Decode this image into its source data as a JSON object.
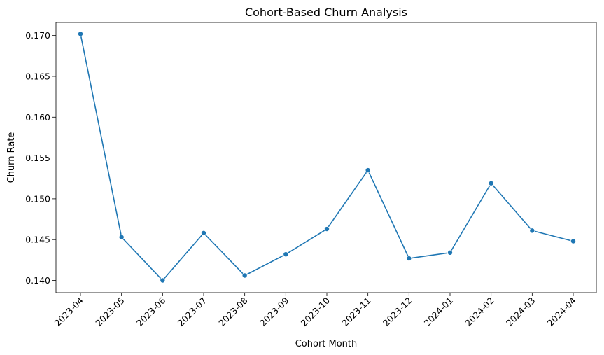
{
  "chart_data": {
    "type": "line",
    "title": "Cohort-Based Churn Analysis",
    "xlabel": "Cohort Month",
    "ylabel": "Churn Rate",
    "categories": [
      "2023-04",
      "2023-05",
      "2023-06",
      "2023-07",
      "2023-08",
      "2023-09",
      "2023-10",
      "2023-11",
      "2023-12",
      "2024-01",
      "2024-02",
      "2024-03",
      "2024-04"
    ],
    "series": [
      {
        "name": "Churn Rate",
        "values": [
          0.1702,
          0.1453,
          0.14,
          0.1458,
          0.1406,
          0.1432,
          0.1463,
          0.1535,
          0.1427,
          0.1434,
          0.1519,
          0.1461,
          0.1448
        ],
        "color": "#1f77b4"
      }
    ],
    "ylim": [
      0.1385,
      0.1716
    ],
    "yticks": [
      0.14,
      0.145,
      0.15,
      0.155,
      0.16,
      0.165,
      0.17
    ],
    "ytick_labels": [
      "0.140",
      "0.145",
      "0.150",
      "0.155",
      "0.160",
      "0.165",
      "0.170"
    ],
    "grid": false,
    "legend": "none"
  }
}
